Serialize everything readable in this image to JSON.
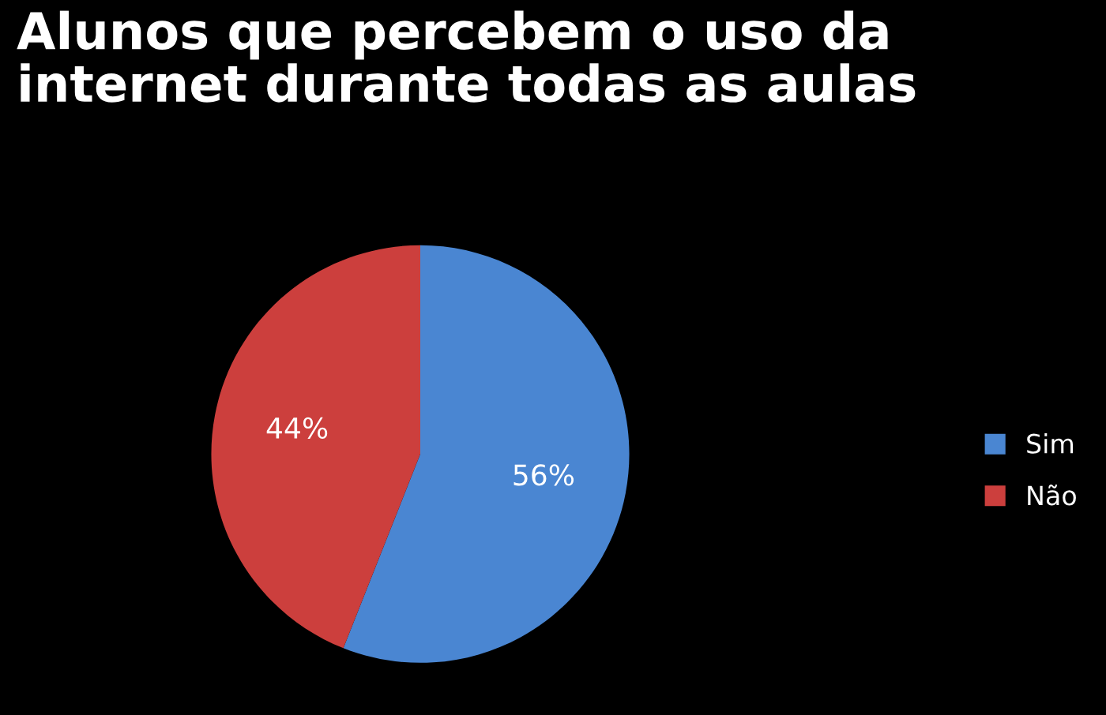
{
  "chart_data": {
    "type": "pie",
    "title": "Alunos que percebem o uso da\ninternet durante todas as aulas",
    "categories": [
      "Sim",
      "Não"
    ],
    "values": [
      56,
      44
    ],
    "colors": [
      "#4a86d2",
      "#cc3f3d"
    ],
    "value_labels": [
      "56%",
      "44%"
    ],
    "legend": "right"
  }
}
